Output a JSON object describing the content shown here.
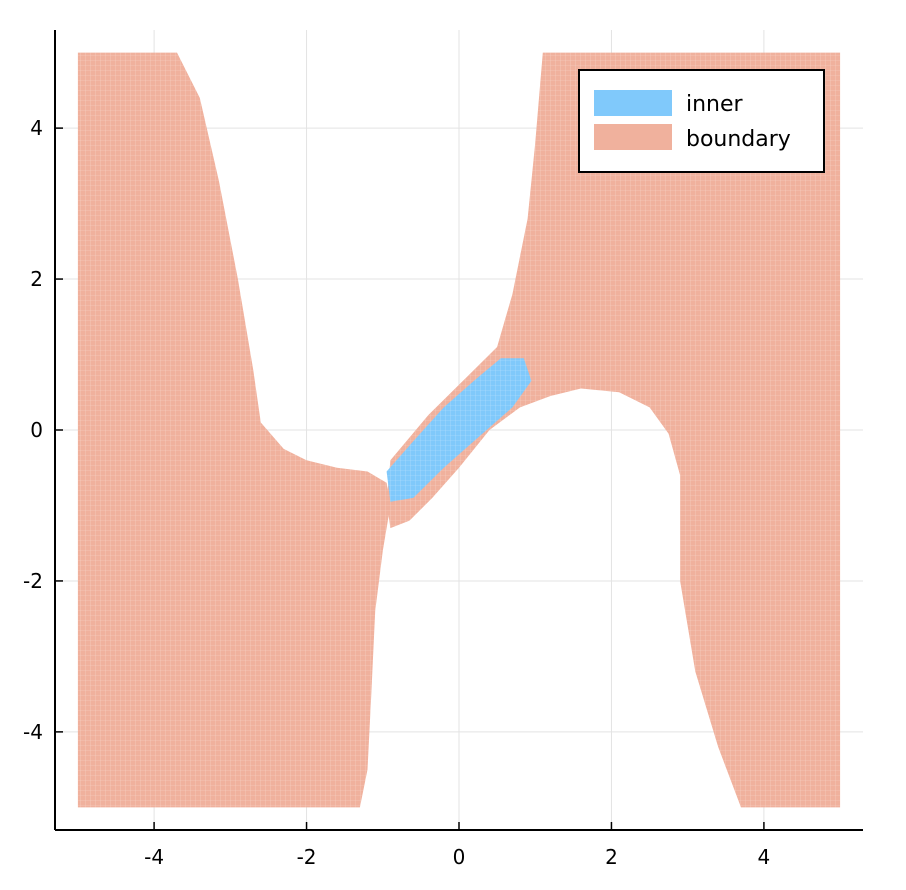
{
  "chart_data": {
    "type": "area",
    "title": "",
    "xlabel": "",
    "ylabel": "",
    "xlim": [
      -5.3,
      5.3
    ],
    "ylim": [
      -5.3,
      5.3
    ],
    "xticks": [
      -4,
      -2,
      0,
      2,
      4
    ],
    "yticks": [
      -4,
      -2,
      0,
      2,
      4
    ],
    "xtick_labels": [
      "-4",
      "-2",
      "0",
      "2",
      "4"
    ],
    "ytick_labels": [
      "-4",
      "-2",
      "0",
      "2",
      "4"
    ],
    "grid": true,
    "legend_position": "top-right",
    "series": [
      {
        "name": "inner",
        "color": "#80c9fb",
        "polygons": [
          [
            [
              -0.95,
              -0.55
            ],
            [
              -0.6,
              -0.15
            ],
            [
              -0.2,
              0.3
            ],
            [
              0.25,
              0.7
            ],
            [
              0.55,
              0.95
            ],
            [
              0.85,
              0.95
            ],
            [
              0.95,
              0.65
            ],
            [
              0.7,
              0.3
            ],
            [
              0.25,
              -0.1
            ],
            [
              -0.2,
              -0.5
            ],
            [
              -0.6,
              -0.9
            ],
            [
              -0.9,
              -0.95
            ]
          ]
        ]
      },
      {
        "name": "boundary",
        "color": "#f0b19d",
        "polygons": [
          [
            [
              -5,
              5
            ],
            [
              -3.7,
              5
            ],
            [
              -3.4,
              4.4
            ],
            [
              -3.15,
              3.3
            ],
            [
              -2.9,
              2.0
            ],
            [
              -2.7,
              0.8
            ],
            [
              -2.6,
              0.1
            ],
            [
              -2.3,
              -0.25
            ],
            [
              -2.0,
              -0.4
            ],
            [
              -1.6,
              -0.5
            ],
            [
              -1.2,
              -0.55
            ],
            [
              -0.95,
              -0.7
            ],
            [
              -0.9,
              -1.0
            ],
            [
              -1.0,
              -1.6
            ],
            [
              -1.1,
              -2.4
            ],
            [
              -1.15,
              -3.5
            ],
            [
              -1.2,
              -4.5
            ],
            [
              -1.3,
              -5
            ],
            [
              -5,
              -5
            ]
          ],
          [
            [
              -0.95,
              -0.95
            ],
            [
              -0.9,
              -0.4
            ],
            [
              -0.4,
              0.2
            ],
            [
              0.1,
              0.7
            ],
            [
              0.5,
              1.1
            ],
            [
              0.7,
              1.8
            ],
            [
              0.9,
              2.8
            ],
            [
              1.0,
              3.8
            ],
            [
              1.1,
              5
            ],
            [
              5,
              5
            ],
            [
              5,
              -5
            ],
            [
              3.7,
              -5
            ],
            [
              3.4,
              -4.2
            ],
            [
              3.1,
              -3.2
            ],
            [
              2.9,
              -2.0
            ],
            [
              2.9,
              -0.6
            ],
            [
              2.75,
              -0.05
            ],
            [
              2.5,
              0.3
            ],
            [
              2.1,
              0.5
            ],
            [
              1.6,
              0.55
            ],
            [
              1.2,
              0.45
            ],
            [
              0.8,
              0.3
            ],
            [
              0.4,
              0.0
            ],
            [
              0.0,
              -0.5
            ],
            [
              -0.35,
              -0.9
            ],
            [
              -0.65,
              -1.2
            ],
            [
              -0.9,
              -1.3
            ]
          ]
        ]
      }
    ]
  }
}
